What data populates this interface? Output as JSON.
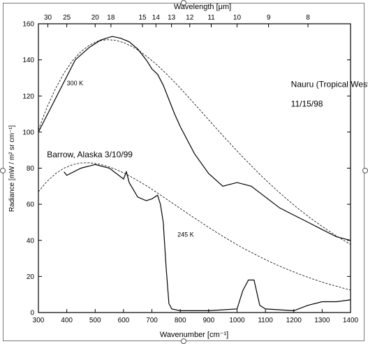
{
  "chart_data": {
    "type": "line",
    "title": "",
    "xlabel": "Wavenumber [cm⁻¹]",
    "ylabel": "Radiance [mW / m² sr cm⁻¹]",
    "top_axis_label": "Wavelength [μm]",
    "xlim": [
      300,
      1400
    ],
    "ylim": [
      0,
      160
    ],
    "x_ticks": [
      300,
      400,
      500,
      600,
      700,
      800,
      900,
      1000,
      1100,
      1200,
      1300,
      1400
    ],
    "y_ticks": [
      0,
      20,
      40,
      60,
      80,
      100,
      120,
      140,
      160
    ],
    "top_ticks": [
      30,
      25,
      20,
      18,
      15,
      14,
      13,
      12,
      11,
      10,
      9,
      8
    ],
    "grid": false,
    "annotations": [
      {
        "text": "Nauru (Tropical Western Pacific)",
        "x": 1190,
        "y": 125
      },
      {
        "text": "11/15/98",
        "x": 1190,
        "y": 114
      },
      {
        "text": "Barrow, Alaska 3/10/99",
        "x": 330,
        "y": 86
      },
      {
        "text": "300 K",
        "x": 400,
        "y": 126
      },
      {
        "text": "245 K",
        "x": 790,
        "y": 42
      }
    ],
    "series": [
      {
        "name": "",
        "style": "solid",
        "x": [
          300,
          430,
          480,
          520,
          560,
          590,
          620,
          650,
          680,
          700,
          720,
          740,
          760,
          780,
          800,
          850,
          900,
          950,
          1000,
          1050,
          1100,
          1150,
          1200,
          1250,
          1300,
          1350,
          1400
        ],
        "y": [
          100,
          140,
          147,
          151,
          153,
          152,
          150,
          146,
          140,
          135,
          132,
          126,
          118,
          110,
          103,
          88,
          77,
          70,
          72,
          70,
          64,
          58,
          54,
          50,
          46,
          42,
          40
        ]
      },
      {
        "name": "",
        "style": "solid",
        "x": [
          390,
          400,
          450,
          500,
          550,
          600,
          610,
          620,
          650,
          680,
          700,
          720,
          730,
          740,
          750,
          760,
          770,
          800,
          900,
          1000,
          1020,
          1040,
          1060,
          1080,
          1100,
          1200,
          1250,
          1300,
          1350,
          1400
        ],
        "y": [
          78,
          76,
          80,
          82,
          80,
          74,
          78,
          72,
          64,
          62,
          63,
          65,
          60,
          50,
          25,
          5,
          2,
          1,
          1,
          2,
          12,
          18,
          18,
          4,
          2,
          1,
          4,
          6,
          6,
          7
        ]
      },
      {
        "name": "",
        "style": "dashed",
        "x": [
          300,
          330,
          360,
          390,
          420,
          450,
          480,
          510,
          540,
          570,
          600,
          630,
          660,
          690,
          720,
          750,
          780,
          810,
          840,
          870,
          900,
          930,
          960,
          990,
          1020,
          1050,
          1080,
          1110,
          1140,
          1170,
          1200,
          1230,
          1260,
          1290,
          1320,
          1350,
          1380,
          1400
        ],
        "y": [
          101.3,
          113.6,
          124.0,
          132.7,
          139.5,
          144.6,
          148.2,
          150.4,
          151.2,
          150.9,
          149.6,
          147.4,
          144.5,
          140.9,
          136.9,
          132.4,
          127.6,
          122.6,
          117.4,
          112.1,
          106.8,
          101.5,
          96.3,
          91.2,
          86.2,
          81.4,
          76.6,
          72.1,
          67.8,
          63.6,
          59.6,
          55.8,
          52.2,
          48.8,
          45.6,
          42.5,
          39.6,
          37.8
        ]
      },
      {
        "name": "",
        "style": "dashed",
        "x": [
          300,
          330,
          360,
          390,
          420,
          450,
          480,
          510,
          540,
          570,
          600,
          630,
          660,
          690,
          720,
          750,
          780,
          810,
          840,
          870,
          900,
          930,
          960,
          990,
          1020,
          1050,
          1080,
          1110,
          1140,
          1170,
          1200,
          1230,
          1260,
          1290,
          1320,
          1350,
          1380,
          1400
        ],
        "y": [
          66.9,
          72.6,
          76.9,
          80.0,
          81.9,
          82.9,
          83.0,
          82.4,
          81.2,
          79.5,
          77.4,
          74.9,
          72.2,
          69.3,
          66.2,
          63.0,
          59.8,
          56.6,
          53.4,
          50.3,
          47.2,
          44.2,
          41.3,
          38.5,
          35.8,
          33.3,
          30.9,
          28.6,
          26.4,
          24.4,
          22.5,
          20.7,
          19.0,
          17.4,
          15.9,
          14.6,
          13.3,
          12.5
        ]
      }
    ]
  }
}
